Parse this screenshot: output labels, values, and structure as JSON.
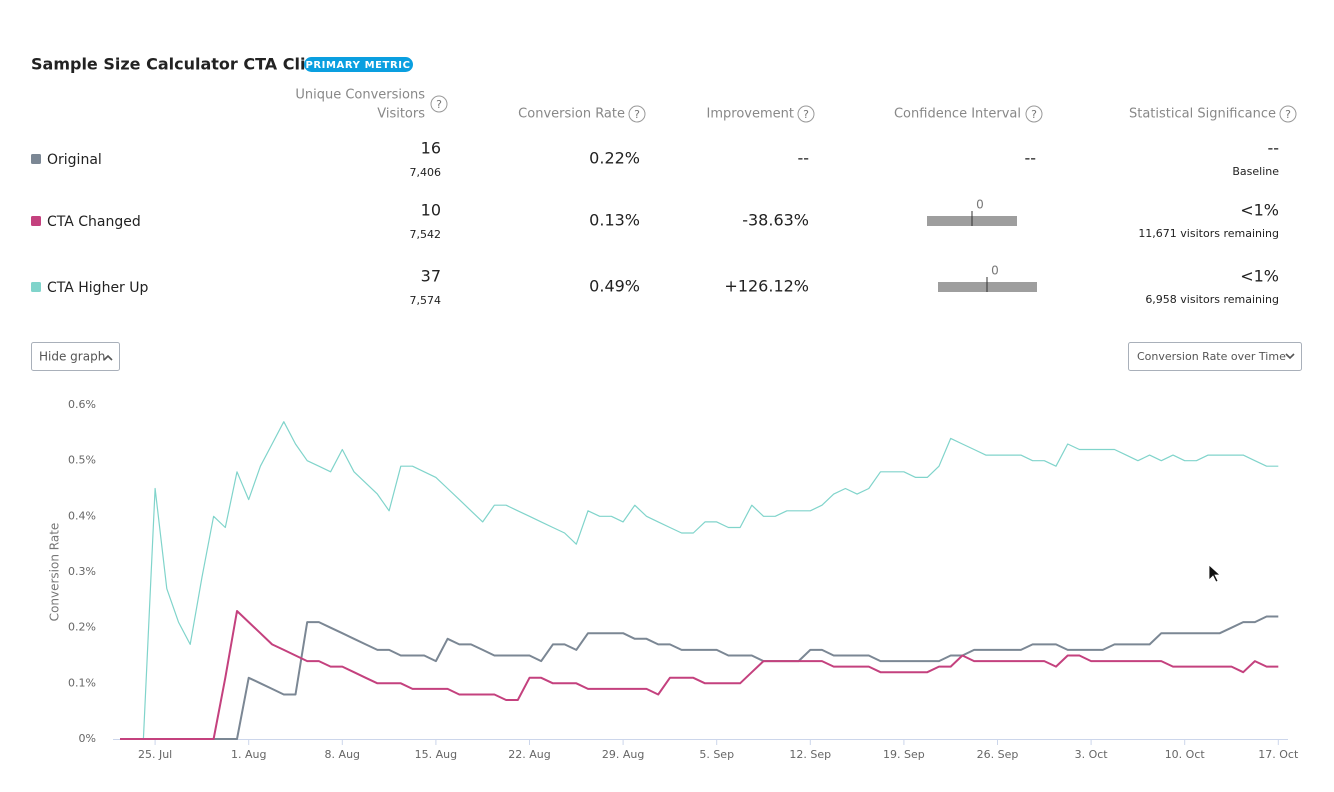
{
  "header": {
    "title": "Sample Size Calculator CTA Click",
    "badge": "PRIMARY METRIC"
  },
  "table": {
    "help": "?",
    "columns": {
      "conversions": "Unique Conversions",
      "visitors": "Visitors",
      "rate": "Conversion Rate",
      "improvement": "Improvement",
      "interval": "Confidence Interval",
      "significance": "Statistical Significance"
    },
    "rows": [
      {
        "conversions": "16",
        "visitors": "7,406",
        "rate": "0.22%",
        "improvement": "--",
        "interval": "--",
        "significance": "--",
        "note": "Baseline"
      },
      {
        "conversions": "10",
        "visitors": "7,542",
        "rate": "0.13%",
        "improvement": "-38.63%",
        "interval_zero": "0",
        "significance": "<1%",
        "note": "11,671 visitors remaining"
      },
      {
        "conversions": "37",
        "visitors": "7,574",
        "rate": "0.49%",
        "improvement": "+126.12%",
        "interval_zero": "0",
        "significance": "<1%",
        "note": "6,958 visitors remaining"
      }
    ]
  },
  "controls": {
    "toggle": "Hide graph",
    "view": "Conversion Rate over Time"
  },
  "chart_data": {
    "type": "line",
    "y_label": "Conversion Rate",
    "categories": [
      null,
      null,
      null,
      "25. Jul",
      null,
      null,
      null,
      null,
      null,
      null,
      null,
      "1. Aug",
      null,
      null,
      null,
      null,
      null,
      null,
      null,
      "8. Aug",
      null,
      null,
      null,
      null,
      null,
      null,
      null,
      "15. Aug",
      null,
      null,
      null,
      null,
      null,
      null,
      null,
      "22. Aug",
      null,
      null,
      null,
      null,
      null,
      null,
      null,
      "29. Aug",
      null,
      null,
      null,
      null,
      null,
      null,
      null,
      "5. Sep",
      null,
      null,
      null,
      null,
      null,
      null,
      null,
      "12. Sep",
      null,
      null,
      null,
      null,
      null,
      null,
      null,
      "19. Sep",
      null,
      null,
      null,
      null,
      null,
      null,
      null,
      "26. Sep",
      null,
      null,
      null,
      null,
      null,
      null,
      null,
      "3. Oct",
      null,
      null,
      null,
      null,
      null,
      null,
      null,
      "10. Oct",
      null,
      null,
      null,
      null,
      null,
      null,
      null,
      "17. Oct"
    ],
    "ylim": [
      0,
      0.6
    ],
    "yticks": [
      {
        "value": 0,
        "label": "0%"
      },
      {
        "value": 0.1,
        "label": "0.1%"
      },
      {
        "value": 0.2,
        "label": "0.2%"
      },
      {
        "value": 0.3,
        "label": "0.3%"
      },
      {
        "value": 0.4,
        "label": "0.4%"
      },
      {
        "value": 0.5,
        "label": "0.5%"
      },
      {
        "value": 0.6,
        "label": "0.6%"
      }
    ],
    "grid": false,
    "series": [
      {
        "name": "Original",
        "color": "#7b8794",
        "values": [
          0,
          0,
          0,
          0,
          0,
          0,
          0,
          0,
          0,
          0,
          0,
          0.11,
          0.1,
          0.09,
          0.08,
          0.08,
          0.21,
          0.21,
          0.2,
          0.19,
          0.18,
          0.17,
          0.16,
          0.16,
          0.15,
          0.15,
          0.15,
          0.14,
          0.18,
          0.17,
          0.17,
          0.16,
          0.15,
          0.15,
          0.15,
          0.15,
          0.14,
          0.17,
          0.17,
          0.16,
          0.19,
          0.19,
          0.19,
          0.19,
          0.18,
          0.18,
          0.17,
          0.17,
          0.16,
          0.16,
          0.16,
          0.16,
          0.15,
          0.15,
          0.15,
          0.14,
          0.14,
          0.14,
          0.14,
          0.16,
          0.16,
          0.15,
          0.15,
          0.15,
          0.15,
          0.14,
          0.14,
          0.14,
          0.14,
          0.14,
          0.14,
          0.15,
          0.15,
          0.16,
          0.16,
          0.16,
          0.16,
          0.16,
          0.17,
          0.17,
          0.17,
          0.16,
          0.16,
          0.16,
          0.16,
          0.17,
          0.17,
          0.17,
          0.17,
          0.19,
          0.19,
          0.19,
          0.19,
          0.19,
          0.19,
          0.2,
          0.21,
          0.21,
          0.22,
          0.22
        ]
      },
      {
        "name": "CTA Changed",
        "color": "#c4417e",
        "values": [
          0,
          0,
          0,
          0,
          0,
          0,
          0,
          0,
          0,
          0.11,
          0.23,
          0.21,
          0.19,
          0.17,
          0.16,
          0.15,
          0.14,
          0.14,
          0.13,
          0.13,
          0.12,
          0.11,
          0.1,
          0.1,
          0.1,
          0.09,
          0.09,
          0.09,
          0.09,
          0.08,
          0.08,
          0.08,
          0.08,
          0.07,
          0.07,
          0.11,
          0.11,
          0.1,
          0.1,
          0.1,
          0.09,
          0.09,
          0.09,
          0.09,
          0.09,
          0.09,
          0.08,
          0.11,
          0.11,
          0.11,
          0.1,
          0.1,
          0.1,
          0.1,
          0.12,
          0.14,
          0.14,
          0.14,
          0.14,
          0.14,
          0.14,
          0.13,
          0.13,
          0.13,
          0.13,
          0.12,
          0.12,
          0.12,
          0.12,
          0.12,
          0.13,
          0.13,
          0.15,
          0.14,
          0.14,
          0.14,
          0.14,
          0.14,
          0.14,
          0.14,
          0.13,
          0.15,
          0.15,
          0.14,
          0.14,
          0.14,
          0.14,
          0.14,
          0.14,
          0.14,
          0.13,
          0.13,
          0.13,
          0.13,
          0.13,
          0.13,
          0.12,
          0.14,
          0.13,
          0.13
        ]
      },
      {
        "name": "CTA Higher Up",
        "color": "#80d4cb",
        "values": [
          0,
          0,
          0,
          0.45,
          0.27,
          0.21,
          0.17,
          0.29,
          0.4,
          0.38,
          0.48,
          0.43,
          0.49,
          0.53,
          0.57,
          0.53,
          0.5,
          0.49,
          0.48,
          0.52,
          0.48,
          0.46,
          0.44,
          0.41,
          0.49,
          0.49,
          0.48,
          0.47,
          0.45,
          0.43,
          0.41,
          0.39,
          0.42,
          0.42,
          0.41,
          0.4,
          0.39,
          0.38,
          0.37,
          0.35,
          0.41,
          0.4,
          0.4,
          0.39,
          0.42,
          0.4,
          0.39,
          0.38,
          0.37,
          0.37,
          0.39,
          0.39,
          0.38,
          0.38,
          0.42,
          0.4,
          0.4,
          0.41,
          0.41,
          0.41,
          0.42,
          0.44,
          0.45,
          0.44,
          0.45,
          0.48,
          0.48,
          0.48,
          0.47,
          0.47,
          0.49,
          0.54,
          0.53,
          0.52,
          0.51,
          0.51,
          0.51,
          0.51,
          0.5,
          0.5,
          0.49,
          0.53,
          0.52,
          0.52,
          0.52,
          0.52,
          0.51,
          0.5,
          0.51,
          0.5,
          0.51,
          0.5,
          0.5,
          0.51,
          0.51,
          0.51,
          0.51,
          0.5,
          0.49,
          0.49
        ]
      }
    ]
  }
}
